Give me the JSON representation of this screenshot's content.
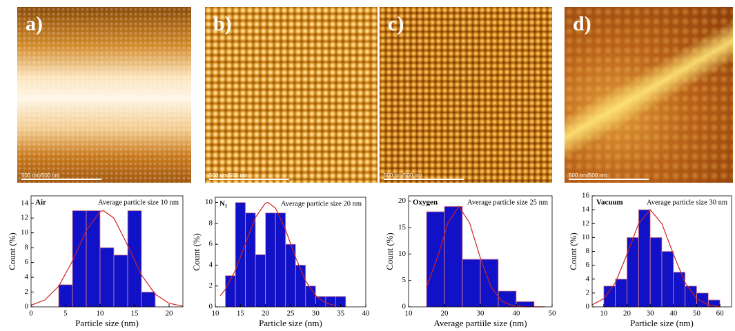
{
  "panels": [
    {
      "label": "a)",
      "scale_bar": "500 nm/500 nm"
    },
    {
      "label": "b)",
      "scale_bar": "500 nm/500 nm"
    },
    {
      "label": "c)",
      "scale_bar": "500 nm/500 nm"
    },
    {
      "label": "d)",
      "scale_bar": "500 nm/500 nm"
    }
  ],
  "chart_data": [
    {
      "type": "histogram",
      "label": "Air",
      "annotation": "Average particle size 10 nm",
      "xlabel": "Particle size (nm)",
      "ylabel": "Count (%)",
      "bins": [
        4,
        6,
        8,
        10,
        12,
        14,
        16,
        18
      ],
      "values": [
        3,
        13,
        13,
        8,
        7,
        13,
        2
      ],
      "color": "#1111c8",
      "fit": {
        "color": "#cc2222",
        "x": [
          0,
          2,
          4,
          6,
          8,
          10,
          10.5,
          12,
          14,
          16,
          18,
          20,
          22
        ],
        "y": [
          0.23,
          0.93,
          2.78,
          6.2,
          10.3,
          12.9,
          13,
          12.0,
          8.3,
          4.3,
          1.7,
          0.48,
          0.1
        ]
      },
      "xlim": [
        0,
        22
      ],
      "ylim": [
        0,
        15
      ],
      "xticks": [
        0,
        5,
        10,
        15,
        20
      ],
      "yticks": [
        0,
        2,
        4,
        6,
        8,
        10,
        12,
        14
      ]
    },
    {
      "type": "histogram",
      "label": "N₂",
      "annotation": "Average particle size 20 nm",
      "xlabel": "Particle size (nm)",
      "ylabel": "Count (%)",
      "bins": [
        12,
        14,
        16,
        18,
        20,
        22,
        24,
        26,
        28,
        30,
        32,
        34,
        36
      ],
      "values": [
        3,
        10,
        9,
        5,
        9,
        9,
        6,
        4,
        2,
        1,
        1,
        1
      ],
      "color": "#1111c8",
      "fit": {
        "color": "#cc2222",
        "x": [
          11,
          12,
          14,
          16,
          18,
          20,
          20.5,
          22,
          24,
          26,
          28,
          30,
          32,
          34
        ],
        "y": [
          1.08,
          1.68,
          3.5,
          6.07,
          8.57,
          9.94,
          10,
          9.46,
          7.39,
          4.74,
          2.49,
          1.08,
          0.38,
          0.11
        ]
      },
      "xlim": [
        10,
        40
      ],
      "ylim": [
        0,
        10.5
      ],
      "xticks": [
        10,
        15,
        20,
        25,
        30,
        35,
        40
      ],
      "yticks": [
        0,
        2,
        4,
        6,
        8,
        10
      ]
    },
    {
      "type": "histogram",
      "label": "Oxygen",
      "annotation": "Average particle size 25 nm",
      "xlabel": "Average partiile size (nm)",
      "ylabel": "Count (%)",
      "bins": [
        15,
        20,
        25,
        30,
        35,
        40,
        45
      ],
      "values": [
        18,
        19,
        9,
        9,
        3,
        1
      ],
      "color": "#1111c8",
      "fit": {
        "color": "#cc2222",
        "x": [
          15,
          18,
          21,
          24,
          27,
          30,
          33,
          36,
          39,
          42,
          48
        ],
        "y": [
          3.75,
          9.25,
          15.9,
          19,
          15.9,
          9.25,
          3.75,
          1.07,
          0.21,
          0.03,
          0
        ]
      },
      "xlim": [
        10,
        50
      ],
      "ylim": [
        0,
        21
      ],
      "xticks": [
        10,
        20,
        30,
        40,
        50
      ],
      "yticks": [
        0,
        5,
        10,
        15,
        20
      ]
    },
    {
      "type": "histogram",
      "label": "Vacuum",
      "annotation": "Average particle size 30 nm",
      "xlabel": "Particle size (nm)",
      "ylabel": "Count (%)",
      "bins": [
        10,
        15,
        20,
        25,
        30,
        35,
        40,
        45,
        50,
        55,
        60
      ],
      "values": [
        3,
        4,
        10,
        14,
        10,
        8,
        5,
        3,
        2,
        1
      ],
      "color": "#1111c8",
      "fit": {
        "color": "#cc2222",
        "x": [
          5,
          10,
          15,
          20,
          25,
          30,
          35,
          40,
          45,
          50,
          55,
          60
        ],
        "y": [
          0.29,
          1.18,
          3.49,
          7.57,
          12.0,
          14,
          12.0,
          7.57,
          3.49,
          1.18,
          0.29,
          0.05
        ]
      },
      "xlim": [
        5,
        65
      ],
      "ylim": [
        0,
        16
      ],
      "xticks": [
        10,
        20,
        30,
        40,
        50,
        60
      ],
      "yticks": [
        0,
        2,
        4,
        6,
        8,
        10,
        12,
        14,
        16
      ]
    }
  ]
}
